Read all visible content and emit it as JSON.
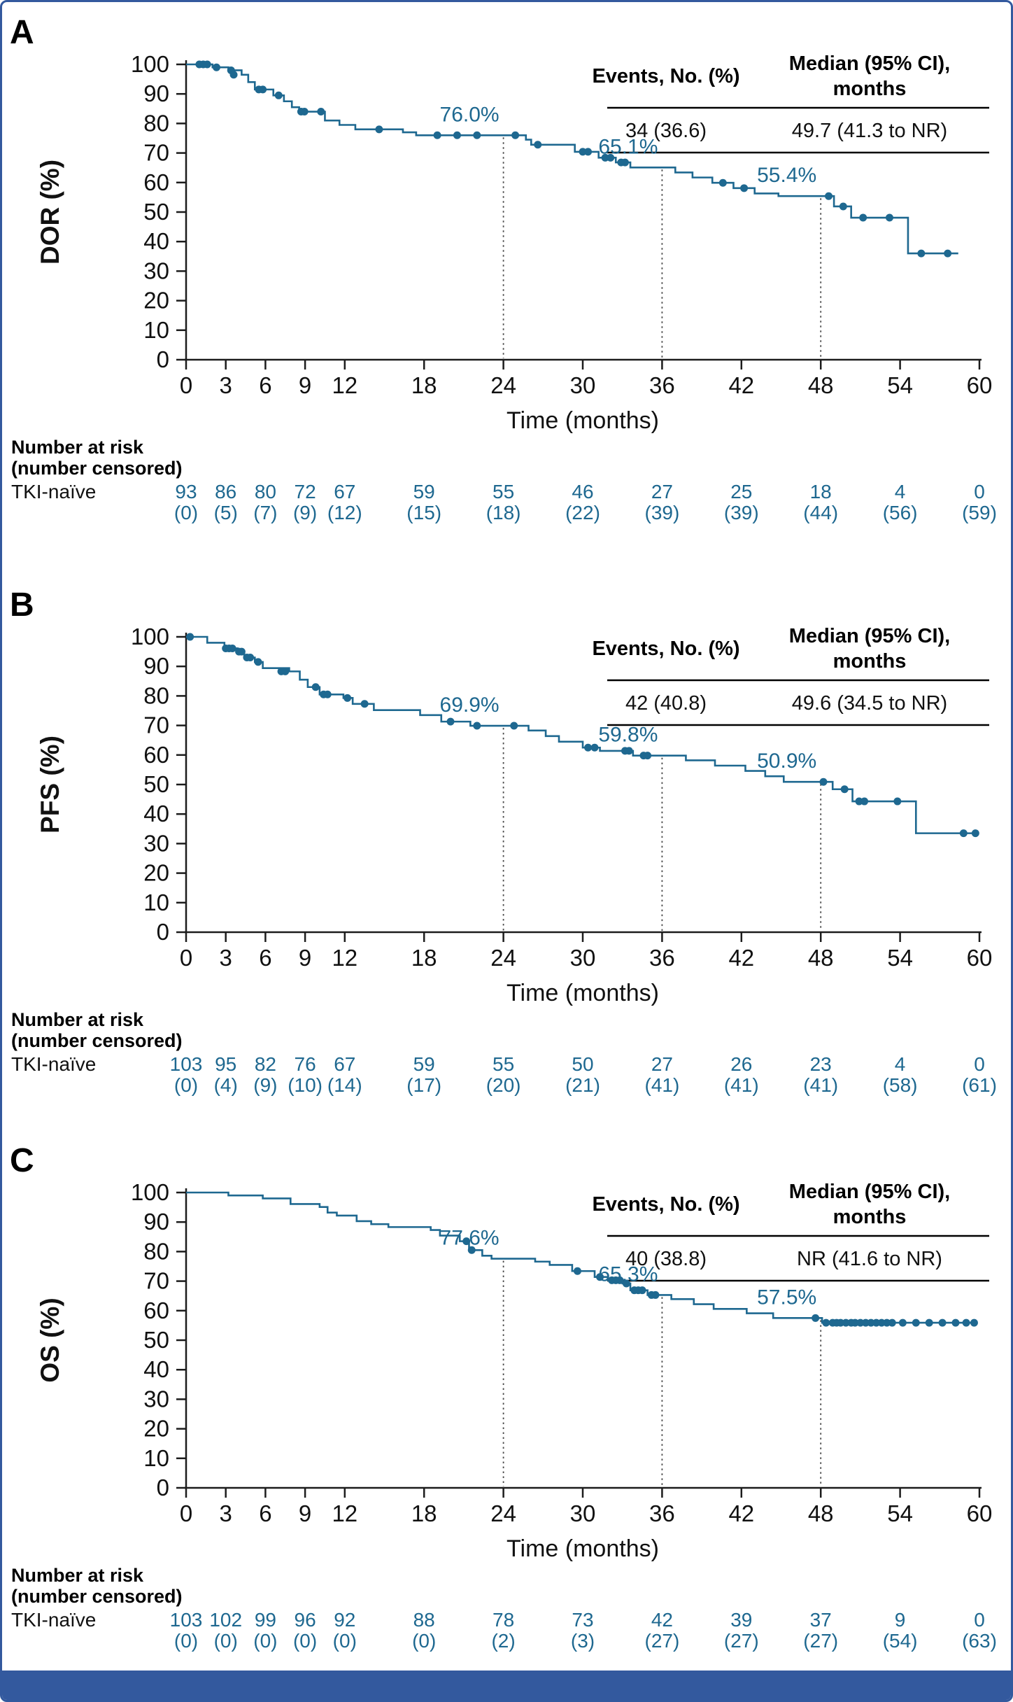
{
  "figure": {
    "accent_color": "#1e6890",
    "border_color": "#33599e",
    "panels": [
      {
        "label": "A",
        "y_axis_label": "DOR (%)",
        "x_axis_label": "Time (months)",
        "table": {
          "col1_header": "Events, No. (%)",
          "col2_header_line1": "Median (95% CI),",
          "col2_header_line2": "months",
          "events": "34 (36.6)",
          "median": "49.7 (41.3 to NR)"
        },
        "risk_header_line1": "Number at risk",
        "risk_header_line2": "(number censored)",
        "risk_group": "TKI-naïve",
        "risk_times": [
          0,
          3,
          6,
          9,
          12,
          18,
          24,
          30,
          36,
          42,
          48,
          54,
          60
        ],
        "risk_n": [
          "93",
          "86",
          "80",
          "72",
          "67",
          "59",
          "55",
          "46",
          "27",
          "25",
          "18",
          "4",
          "0"
        ],
        "risk_c": [
          "(0)",
          "(5)",
          "(7)",
          "(9)",
          "(12)",
          "(15)",
          "(18)",
          "(22)",
          "(39)",
          "(39)",
          "(44)",
          "(56)",
          "(59)"
        ]
      },
      {
        "label": "B",
        "y_axis_label": "PFS (%)",
        "x_axis_label": "Time (months)",
        "table": {
          "col1_header": "Events, No. (%)",
          "col2_header_line1": "Median (95% CI),",
          "col2_header_line2": "months",
          "events": "42 (40.8)",
          "median": "49.6 (34.5 to NR)"
        },
        "risk_header_line1": "Number at risk",
        "risk_header_line2": "(number censored)",
        "risk_group": "TKI-naïve",
        "risk_times": [
          0,
          3,
          6,
          9,
          12,
          18,
          24,
          30,
          36,
          42,
          48,
          54,
          60
        ],
        "risk_n": [
          "103",
          "95",
          "82",
          "76",
          "67",
          "59",
          "55",
          "50",
          "27",
          "26",
          "23",
          "4",
          "0"
        ],
        "risk_c": [
          "(0)",
          "(4)",
          "(9)",
          "(10)",
          "(14)",
          "(17)",
          "(20)",
          "(21)",
          "(41)",
          "(41)",
          "(41)",
          "(58)",
          "(61)"
        ]
      },
      {
        "label": "C",
        "y_axis_label": "OS (%)",
        "x_axis_label": "Time (months)",
        "table": {
          "col1_header": "Events, No. (%)",
          "col2_header_line1": "Median (95% CI),",
          "col2_header_line2": "months",
          "events": "40 (38.8)",
          "median": "NR (41.6 to NR)"
        },
        "risk_header_line1": "Number at risk",
        "risk_header_line2": "(number censored)",
        "risk_group": "TKI-naïve",
        "risk_times": [
          0,
          3,
          6,
          9,
          12,
          18,
          24,
          30,
          36,
          42,
          48,
          54,
          60
        ],
        "risk_n": [
          "103",
          "102",
          "99",
          "96",
          "92",
          "88",
          "78",
          "73",
          "42",
          "39",
          "37",
          "9",
          "0"
        ],
        "risk_c": [
          "(0)",
          "(0)",
          "(0)",
          "(0)",
          "(0)",
          "(0)",
          "(2)",
          "(3)",
          "(27)",
          "(27)",
          "(27)",
          "(54)",
          "(63)"
        ]
      }
    ]
  },
  "chart_data": [
    {
      "type": "line",
      "subtype": "kaplan-meier-step",
      "name": "DOR, TKI-naïve",
      "ylabel": "DOR (%)",
      "xlabel": "Time (months)",
      "xlim": [
        0,
        60
      ],
      "ylim": [
        0,
        100
      ],
      "xticks": [
        0,
        3,
        6,
        9,
        12,
        18,
        24,
        30,
        36,
        42,
        48,
        54,
        60
      ],
      "yticks": [
        0,
        10,
        20,
        30,
        40,
        50,
        60,
        70,
        80,
        90,
        100
      ],
      "start_value": 100,
      "end_t": 58.4,
      "steps": [
        [
          2.0,
          99
        ],
        [
          3.2,
          98
        ],
        [
          4.2,
          96.5
        ],
        [
          4.7,
          94
        ],
        [
          5.2,
          91.5
        ],
        [
          6.6,
          89.5
        ],
        [
          7.4,
          87.5
        ],
        [
          8.0,
          85.5
        ],
        [
          8.55,
          84
        ],
        [
          10.5,
          81
        ],
        [
          11.6,
          79.5
        ],
        [
          12.8,
          78
        ],
        [
          16.4,
          77
        ],
        [
          17.4,
          76
        ],
        [
          25.7,
          74.5
        ],
        [
          26.1,
          72.8
        ],
        [
          29.4,
          70.4
        ],
        [
          31.2,
          68.4
        ],
        [
          32.5,
          66.8
        ],
        [
          33.6,
          65.1
        ],
        [
          37.0,
          63.4
        ],
        [
          38.3,
          61.7
        ],
        [
          39.8,
          59.9
        ],
        [
          41.4,
          58.1
        ],
        [
          43.0,
          56.3
        ],
        [
          44.8,
          55.4
        ],
        [
          49.0,
          51.9
        ],
        [
          50.3,
          48.1
        ],
        [
          54.6,
          36.0
        ]
      ],
      "censors": [
        [
          1.0,
          100
        ],
        [
          1.3,
          100
        ],
        [
          1.6,
          100
        ],
        [
          2.3,
          99
        ],
        [
          3.4,
          98
        ],
        [
          3.6,
          96.5
        ],
        [
          5.5,
          91.5
        ],
        [
          5.8,
          91.5
        ],
        [
          7.0,
          89.5
        ],
        [
          8.7,
          84
        ],
        [
          8.95,
          84
        ],
        [
          10.2,
          84
        ],
        [
          14.6,
          78
        ],
        [
          19.0,
          76
        ],
        [
          20.5,
          76
        ],
        [
          22.0,
          76
        ],
        [
          24.9,
          76
        ],
        [
          26.6,
          72.8
        ],
        [
          30.0,
          70.4
        ],
        [
          30.4,
          70.4
        ],
        [
          31.7,
          68.4
        ],
        [
          32.1,
          68.4
        ],
        [
          32.9,
          66.8
        ],
        [
          33.2,
          66.8
        ],
        [
          40.6,
          59.9
        ],
        [
          42.2,
          58.1
        ],
        [
          48.6,
          55.4
        ],
        [
          49.7,
          51.9
        ],
        [
          51.2,
          48.1
        ],
        [
          53.2,
          48.1
        ],
        [
          55.6,
          36.0
        ],
        [
          57.6,
          36.0
        ]
      ],
      "annotations": [
        {
          "t": 24,
          "value": 76.0,
          "label": "76.0%"
        },
        {
          "t": 36,
          "value": 65.1,
          "label": "65.1%"
        },
        {
          "t": 48,
          "value": 55.4,
          "label": "55.4%"
        }
      ]
    },
    {
      "type": "line",
      "subtype": "kaplan-meier-step",
      "name": "PFS, TKI-naïve",
      "ylabel": "PFS (%)",
      "xlabel": "Time (months)",
      "xlim": [
        0,
        60
      ],
      "ylim": [
        0,
        100
      ],
      "xticks": [
        0,
        3,
        6,
        9,
        12,
        18,
        24,
        30,
        36,
        42,
        48,
        54,
        60
      ],
      "yticks": [
        0,
        10,
        20,
        30,
        40,
        50,
        60,
        70,
        80,
        90,
        100
      ],
      "start_value": 100,
      "end_t": 59.8,
      "steps": [
        [
          1.6,
          98
        ],
        [
          2.9,
          96.1
        ],
        [
          3.9,
          95
        ],
        [
          4.4,
          93
        ],
        [
          5.2,
          91.5
        ],
        [
          5.8,
          89.4
        ],
        [
          7.8,
          88.3
        ],
        [
          8.6,
          85.5
        ],
        [
          9.2,
          83
        ],
        [
          10.1,
          80.5
        ],
        [
          11.9,
          79.3
        ],
        [
          12.6,
          77.3
        ],
        [
          14.2,
          75.2
        ],
        [
          17.7,
          73.5
        ],
        [
          19.3,
          71.3
        ],
        [
          21.5,
          69.9
        ],
        [
          25.9,
          68.3
        ],
        [
          27.2,
          66.4
        ],
        [
          28.2,
          64.5
        ],
        [
          30.0,
          62.5
        ],
        [
          31.3,
          61.4
        ],
        [
          33.8,
          59.8
        ],
        [
          37.8,
          58.2
        ],
        [
          40.0,
          56.4
        ],
        [
          42.3,
          54.6
        ],
        [
          43.8,
          52.8
        ],
        [
          45.2,
          50.9
        ],
        [
          48.9,
          48.4
        ],
        [
          50.4,
          44.3
        ],
        [
          55.2,
          33.5
        ]
      ],
      "censors": [
        [
          0.3,
          100
        ],
        [
          3.0,
          96.1
        ],
        [
          3.25,
          96.1
        ],
        [
          3.5,
          96.1
        ],
        [
          4.0,
          95
        ],
        [
          4.2,
          95
        ],
        [
          4.6,
          93
        ],
        [
          4.85,
          93
        ],
        [
          5.45,
          91.5
        ],
        [
          7.2,
          88.3
        ],
        [
          7.5,
          88.3
        ],
        [
          9.8,
          83
        ],
        [
          10.4,
          80.5
        ],
        [
          10.7,
          80.5
        ],
        [
          12.2,
          79.3
        ],
        [
          13.5,
          77.3
        ],
        [
          20.0,
          71.3
        ],
        [
          22.0,
          69.9
        ],
        [
          24.8,
          69.9
        ],
        [
          30.4,
          62.5
        ],
        [
          30.9,
          62.5
        ],
        [
          33.2,
          61.4
        ],
        [
          33.5,
          61.4
        ],
        [
          34.6,
          59.8
        ],
        [
          34.9,
          59.8
        ],
        [
          48.2,
          50.9
        ],
        [
          49.8,
          48.4
        ],
        [
          50.9,
          44.3
        ],
        [
          51.3,
          44.3
        ],
        [
          53.8,
          44.3
        ],
        [
          58.8,
          33.5
        ],
        [
          59.7,
          33.5
        ]
      ],
      "annotations": [
        {
          "t": 24,
          "value": 69.9,
          "label": "69.9%"
        },
        {
          "t": 36,
          "value": 59.8,
          "label": "59.8%"
        },
        {
          "t": 48,
          "value": 50.9,
          "label": "50.9%"
        }
      ]
    },
    {
      "type": "line",
      "subtype": "kaplan-meier-step",
      "name": "OS, TKI-naïve",
      "ylabel": "OS (%)",
      "xlabel": "Time (months)",
      "xlim": [
        0,
        60
      ],
      "ylim": [
        0,
        100
      ],
      "xticks": [
        0,
        3,
        6,
        9,
        12,
        18,
        24,
        30,
        36,
        42,
        48,
        54,
        60
      ],
      "yticks": [
        0,
        10,
        20,
        30,
        40,
        50,
        60,
        70,
        80,
        90,
        100
      ],
      "start_value": 100,
      "end_t": 59.8,
      "steps": [
        [
          3.2,
          99
        ],
        [
          5.8,
          98
        ],
        [
          7.9,
          96.1
        ],
        [
          10.1,
          95.1
        ],
        [
          10.7,
          93.2
        ],
        [
          11.4,
          92.2
        ],
        [
          12.9,
          90.3
        ],
        [
          14.0,
          89.3
        ],
        [
          15.3,
          88.3
        ],
        [
          18.5,
          87.3
        ],
        [
          19.2,
          85.4
        ],
        [
          20.7,
          83.5
        ],
        [
          21.4,
          80.5
        ],
        [
          22.4,
          78.6
        ],
        [
          23.1,
          77.6
        ],
        [
          26.4,
          76.6
        ],
        [
          27.5,
          75.5
        ],
        [
          29.2,
          73.4
        ],
        [
          30.9,
          71.4
        ],
        [
          31.9,
          70.3
        ],
        [
          33.0,
          69.2
        ],
        [
          33.6,
          66.9
        ],
        [
          34.9,
          65.3
        ],
        [
          36.7,
          63.9
        ],
        [
          38.4,
          62.2
        ],
        [
          39.9,
          60.6
        ],
        [
          42.4,
          59.1
        ],
        [
          44.4,
          57.5
        ],
        [
          48.1,
          55.9
        ]
      ],
      "censors": [
        [
          21.2,
          83.5
        ],
        [
          21.6,
          80.5
        ],
        [
          29.6,
          73.4
        ],
        [
          31.3,
          71.4
        ],
        [
          32.2,
          70.3
        ],
        [
          32.5,
          70.3
        ],
        [
          32.8,
          70.3
        ],
        [
          33.3,
          69.2
        ],
        [
          33.9,
          66.9
        ],
        [
          34.2,
          66.9
        ],
        [
          34.5,
          66.9
        ],
        [
          35.2,
          65.3
        ],
        [
          35.5,
          65.3
        ],
        [
          47.6,
          57.5
        ],
        [
          48.4,
          55.9
        ],
        [
          48.9,
          55.9
        ],
        [
          49.2,
          55.9
        ],
        [
          49.5,
          55.9
        ],
        [
          49.9,
          55.9
        ],
        [
          50.3,
          55.9
        ],
        [
          50.6,
          55.9
        ],
        [
          51.0,
          55.9
        ],
        [
          51.4,
          55.9
        ],
        [
          51.8,
          55.9
        ],
        [
          52.2,
          55.9
        ],
        [
          52.6,
          55.9
        ],
        [
          53.0,
          55.9
        ],
        [
          53.4,
          55.9
        ],
        [
          54.2,
          55.9
        ],
        [
          55.2,
          55.9
        ],
        [
          56.2,
          55.9
        ],
        [
          57.2,
          55.9
        ],
        [
          58.2,
          55.9
        ],
        [
          59.0,
          55.9
        ],
        [
          59.6,
          55.9
        ]
      ],
      "annotations": [
        {
          "t": 24,
          "value": 77.6,
          "label": "77.6%"
        },
        {
          "t": 36,
          "value": 65.3,
          "label": "65.3%"
        },
        {
          "t": 48,
          "value": 57.5,
          "label": "57.5%"
        }
      ]
    }
  ]
}
